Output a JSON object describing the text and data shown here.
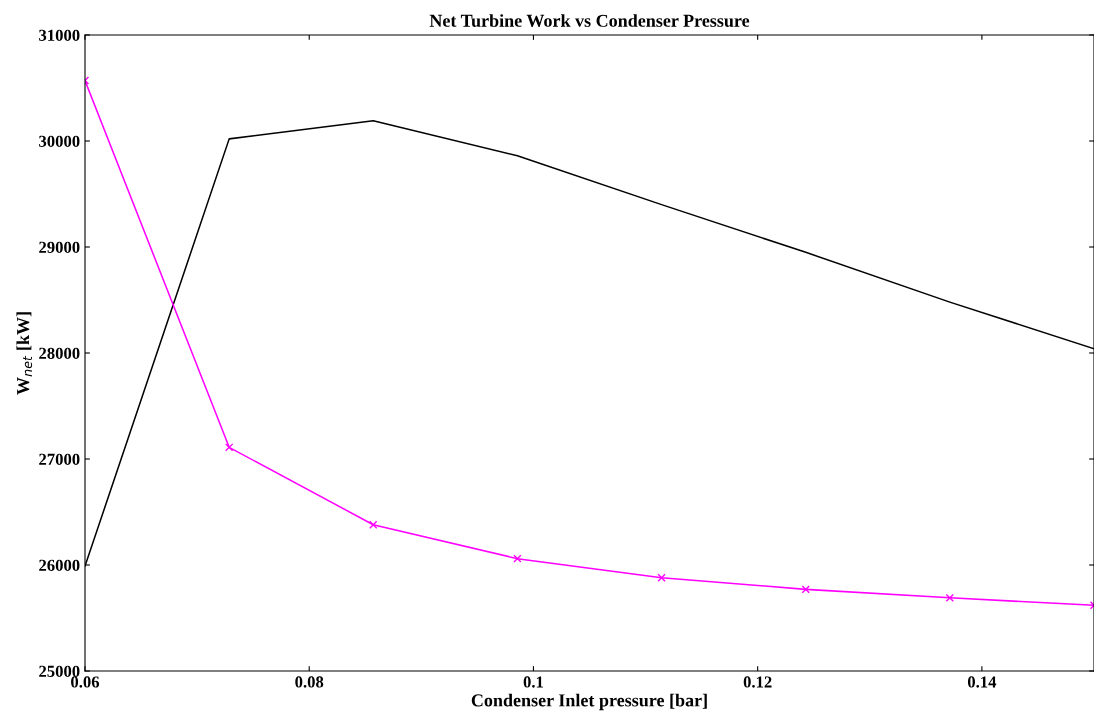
{
  "chart_data": {
    "type": "line",
    "title": "Net Turbine Work vs Condenser Pressure",
    "xlabel": "Condenser Inlet pressure [bar]",
    "ylabel": "W$_{net}$ [kW]",
    "x": [
      0.06,
      0.07286,
      0.08571,
      0.09857,
      0.11143,
      0.12429,
      0.13714,
      0.15
    ],
    "series": [
      {
        "color": "#000000",
        "marker": "none",
        "values": [
          25990,
          30020,
          30190,
          29860,
          29400,
          28950,
          28480,
          28040
        ]
      },
      {
        "color": "#ff00ff",
        "marker": "cross",
        "values": [
          30570,
          27110,
          26380,
          26060,
          25880,
          25770,
          25690,
          25620
        ]
      }
    ],
    "xlim": [
      0.06,
      0.15
    ],
    "xticks": [
      0.06,
      0.08,
      0.1,
      0.12,
      0.14
    ],
    "ylim": [
      25000,
      31000
    ],
    "yticks": [
      25000,
      26000,
      27000,
      28000,
      29000,
      30000,
      31000
    ],
    "grid": false,
    "line_style": "solid"
  }
}
